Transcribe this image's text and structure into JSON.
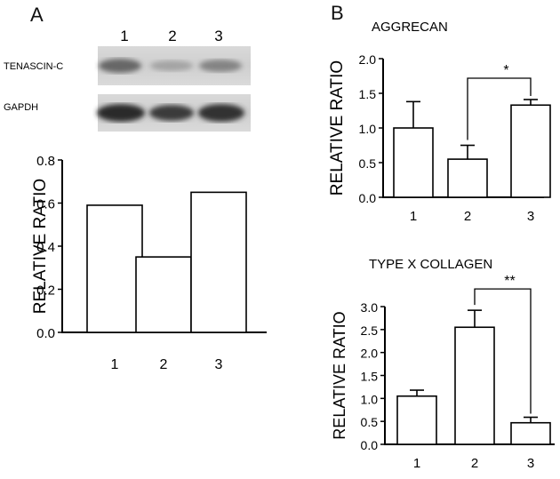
{
  "panel_a": {
    "letter": "A",
    "lane_numbers": [
      "1",
      "2",
      "3"
    ],
    "blot_labels": [
      "TENASCIN-C",
      "GAPDH"
    ]
  },
  "panel_b": {
    "letter": "B"
  },
  "chart_data": [
    {
      "type": "bar",
      "panel": "A",
      "title": "",
      "xlabel": "",
      "ylabel": "RELATIVE RATIO",
      "categories": [
        "1",
        "2",
        "3"
      ],
      "values": [
        0.59,
        0.35,
        0.65
      ],
      "ylim": [
        0,
        0.8
      ],
      "yticks": [
        "0.0",
        "0.2",
        "0.4",
        "0.6",
        "0.8"
      ],
      "grid": false
    },
    {
      "type": "bar",
      "panel": "B",
      "title": "AGGRECAN",
      "xlabel": "",
      "ylabel": "RELATIVE RATIO",
      "categories": [
        "1",
        "2",
        "3"
      ],
      "values": [
        1.0,
        0.55,
        1.33
      ],
      "errors": [
        0.38,
        0.2,
        0.08
      ],
      "ylim": [
        0,
        2.0
      ],
      "yticks": [
        "0.0",
        "0.5",
        "1.0",
        "1.5",
        "2.0"
      ],
      "significance": {
        "from": "2",
        "to": "3",
        "label": "*"
      },
      "grid": false
    },
    {
      "type": "bar",
      "panel": "B",
      "title": "TYPE X COLLAGEN",
      "xlabel": "",
      "ylabel": "RELATIVE RATIO",
      "categories": [
        "1",
        "2",
        "3"
      ],
      "values": [
        1.05,
        2.55,
        0.47
      ],
      "errors": [
        0.13,
        0.37,
        0.12
      ],
      "ylim": [
        0,
        3.0
      ],
      "yticks": [
        "0.0",
        "0.5",
        "1.0",
        "1.5",
        "2.0",
        "2.5",
        "3.0"
      ],
      "significance": {
        "from": "2",
        "to": "3",
        "label": "**"
      },
      "grid": false
    }
  ]
}
